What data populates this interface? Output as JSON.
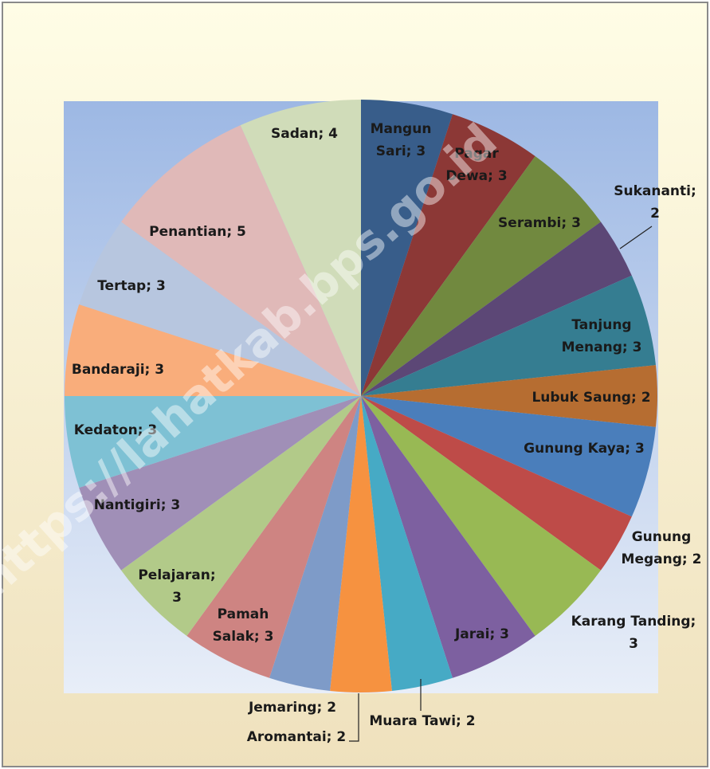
{
  "chart_data": {
    "type": "pie",
    "watermark": "https://lahatkab.bps.go.id",
    "categories": [
      "Mangun Sari",
      "Pagar Dewa",
      "Serambi",
      "Sukananti",
      "Tanjung Menang",
      "Lubuk Saung",
      "Gunung Kaya",
      "Gunung Megang",
      "Karang Tanding",
      "Jarai",
      "Muara Tawi",
      "Aromantai",
      "Jemaring",
      "Pamah Salak",
      "Pelajaran",
      "Nantigiri",
      "Kedaton",
      "Bandaraji",
      "Tertap",
      "Penantian",
      "Sadan"
    ],
    "values": [
      3,
      3,
      3,
      2,
      3,
      2,
      3,
      2,
      3,
      3,
      2,
      2,
      2,
      3,
      3,
      3,
      3,
      3,
      3,
      5,
      4
    ],
    "value_labels": [
      "Mangun Sari; 3",
      "Pagar Dewa; 3",
      "Serambi; 3",
      "Sukananti; 2",
      "Tanjung Menang; 3",
      "Lubuk Saung; 2",
      "Gunung Kaya; 3",
      "Gunung Megang; 2",
      "Karang Tanding; 3",
      "Jarai; 3",
      "Muara Tawi; 2",
      "Aromantai; 2",
      "Jemaring; 2",
      "Pamah Salak; 3",
      "Pelajaran; 3",
      "Nantigiri; 3",
      "Kedaton; 3",
      "Bandaraji; 3",
      "Tertap; 3",
      "Penantian; 5",
      "Sadan; 4"
    ],
    "colors": [
      "#385d8a",
      "#8c3836",
      "#71893f",
      "#5c4776",
      "#357d91",
      "#b66d31",
      "#4a7ebb",
      "#be4b48",
      "#98b954",
      "#7d60a0",
      "#46aac5",
      "#f69240",
      "#7e9bc8",
      "#ce8482",
      "#b2ca89",
      "#a08fb7",
      "#7ec1d4",
      "#f9ad7b",
      "#b7c6df",
      "#e0b9b8",
      "#d0dcb9"
    ]
  }
}
